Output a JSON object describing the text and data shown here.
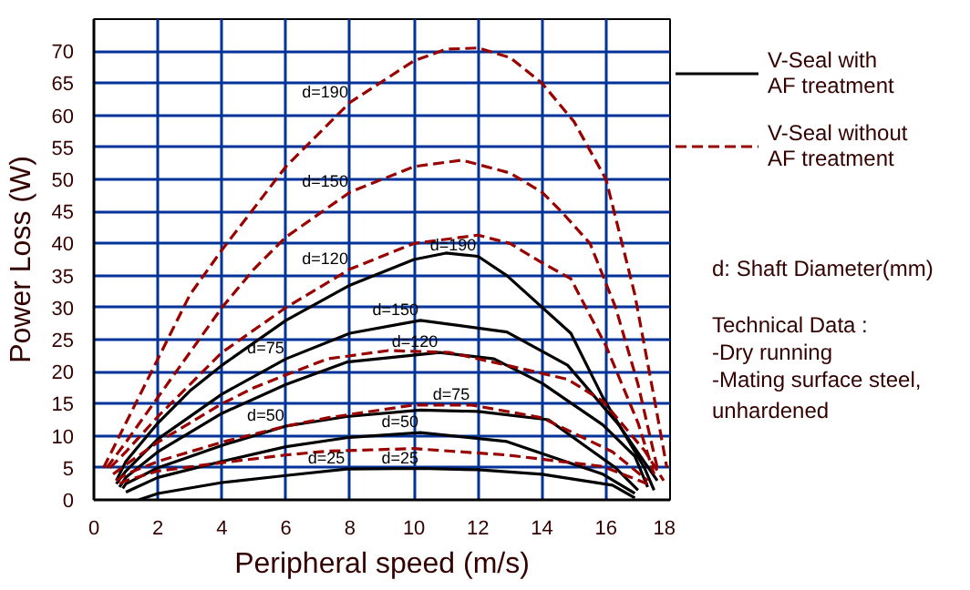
{
  "chart_data": {
    "type": "line",
    "xlabel": "Peripheral speed (m/s)",
    "ylabel": "Power Loss (W)",
    "xlim": [
      0,
      18
    ],
    "xticks": [
      0,
      2,
      4,
      6,
      8,
      10,
      12,
      14,
      16,
      18
    ],
    "ylim": [
      0,
      75
    ],
    "yticks": [
      0,
      5,
      10,
      15,
      20,
      25,
      30,
      35,
      40,
      45,
      50,
      55,
      60,
      65,
      70
    ],
    "grid": true,
    "legend": "right",
    "marker": "none",
    "series": [
      {
        "name": "V-Seal with\nAF treatment",
        "color": "#000000",
        "line_style": "solid",
        "x": [
          0.7,
          1,
          2,
          3,
          4,
          6,
          8,
          10,
          11,
          12,
          12.9,
          14.9,
          15.9,
          17.2,
          17.5
        ],
        "values": [
          3,
          6,
          12,
          17,
          21,
          28,
          33.5,
          37.5,
          38.5,
          38,
          35,
          26,
          16,
          5,
          1.5
        ]
      },
      {
        "name": "V-Seal without\nAF treatment",
        "color": "#990000",
        "line_style": "dashed",
        "x": [
          0.3,
          1,
          2,
          3,
          4,
          6,
          8,
          10,
          11,
          12,
          13,
          14,
          15,
          16,
          16.9,
          17.5,
          17.9
        ],
        "values": [
          5,
          12,
          22,
          32,
          39,
          52,
          62,
          68.5,
          70.3,
          70.5,
          69,
          65,
          59,
          50,
          32,
          16,
          5
        ]
      },
      {
        "color": "#000000",
        "line_style": "solid",
        "x": [
          0.7,
          1,
          2,
          4,
          6,
          8,
          10.2,
          12.9,
          14.8,
          16.4,
          17.6
        ],
        "values": [
          2.5,
          4.5,
          9.5,
          16.5,
          22,
          26,
          28,
          26.2,
          21,
          11.7,
          3
        ]
      },
      {
        "color": "#990000",
        "line_style": "dashed",
        "x": [
          0.4,
          1,
          2,
          3,
          4,
          5,
          6,
          8,
          10,
          11.5,
          13,
          14,
          14.6,
          15.5,
          16.3,
          17,
          17.6
        ],
        "values": [
          5,
          9,
          16,
          23,
          30,
          36,
          41,
          48,
          52,
          53,
          51,
          48,
          45,
          40,
          30,
          18,
          5
        ]
      },
      {
        "color": "#000000",
        "line_style": "solid",
        "x": [
          0.8,
          1,
          2,
          4,
          6,
          7.9,
          10.8,
          12.5,
          14,
          15.9,
          16.9,
          17.3
        ],
        "values": [
          2,
          3.5,
          7.5,
          13.5,
          18,
          21.5,
          23,
          22,
          18.2,
          11.7,
          6.8,
          2
        ]
      },
      {
        "color": "#990000",
        "line_style": "dashed",
        "x": [
          0.5,
          1,
          2,
          3,
          4,
          6,
          8,
          10,
          12,
          13,
          14,
          14.9,
          16,
          17,
          17.5
        ],
        "values": [
          5,
          7.5,
          13,
          18,
          23,
          30,
          36,
          40,
          41.3,
          40,
          37,
          34.5,
          24,
          12,
          4
        ]
      },
      {
        "color": "#000000",
        "line_style": "solid",
        "x": [
          0.9,
          1,
          2,
          4,
          6,
          7.9,
          10.2,
          12,
          14.2,
          16.3,
          17
        ],
        "values": [
          1.8,
          2.5,
          5,
          8.5,
          11.5,
          13,
          14,
          13.8,
          12.5,
          5,
          1.5
        ]
      },
      {
        "color": "#990000",
        "line_style": "dashed",
        "x": [
          0.6,
          1,
          2,
          3,
          4,
          5,
          6,
          7.3,
          9.2,
          11.1,
          12.9,
          14.8,
          15.9,
          17.2,
          17.8
        ],
        "values": [
          4,
          5.5,
          9,
          12,
          15,
          17.5,
          19.5,
          22,
          23.3,
          23,
          21,
          18.8,
          15.4,
          7.7,
          3
        ]
      },
      {
        "color": "#000000",
        "line_style": "solid",
        "x": [
          1,
          2,
          4,
          6,
          7.9,
          10.2,
          12.9,
          15.9,
          16.9
        ],
        "values": [
          1.2,
          3.5,
          6,
          8.3,
          9.7,
          10.5,
          9.1,
          4,
          1
        ]
      },
      {
        "color": "#990000",
        "line_style": "dashed",
        "x": [
          0.7,
          1,
          2,
          4,
          6,
          7.3,
          10,
          11.8,
          14,
          16.2,
          17.3
        ],
        "values": [
          3,
          4,
          6,
          9,
          11.5,
          12.8,
          14.8,
          14.8,
          12.8,
          7.5,
          3
        ]
      },
      {
        "color": "#000000",
        "line_style": "solid",
        "x": [
          1.4,
          2,
          4,
          6,
          7.9,
          10.2,
          12,
          14,
          16.2,
          16.9
        ],
        "values": [
          0,
          1,
          2.7,
          3.8,
          4.8,
          4.9,
          4.7,
          4,
          2.3,
          0.3
        ]
      },
      {
        "color": "#990000",
        "line_style": "dashed",
        "x": [
          0.8,
          1,
          2,
          4,
          6,
          7.3,
          10,
          12.9,
          15.9,
          17.3
        ],
        "values": [
          2.5,
          3,
          4.5,
          5.8,
          7,
          7.6,
          8,
          7,
          5.2,
          2.5
        ]
      }
    ],
    "annotations": [
      {
        "text": "d=190",
        "x": 8,
        "y": 62
      },
      {
        "text": "d=150",
        "x": 8,
        "y": 48
      },
      {
        "text": "d=120",
        "x": 8,
        "y": 36
      },
      {
        "text": "d=75",
        "x": 6,
        "y": 22
      },
      {
        "text": "d=50",
        "x": 6,
        "y": 11.5
      },
      {
        "text": "d=25",
        "x": 7.9,
        "y": 4.8
      },
      {
        "text": "d=190",
        "x": 12,
        "y": 38
      },
      {
        "text": "d=150",
        "x": 10.2,
        "y": 28
      },
      {
        "text": "d=120",
        "x": 10.8,
        "y": 23
      },
      {
        "text": "d=75",
        "x": 11.8,
        "y": 14.8
      },
      {
        "text": "d=50",
        "x": 10.2,
        "y": 10.5
      },
      {
        "text": "d=25",
        "x": 10.2,
        "y": 4.9
      },
      "d: Shaft Diameter(mm)",
      "Technical Data :",
      " -Dry running",
      " -Mating surface steel,\n  unhardened"
    ]
  }
}
